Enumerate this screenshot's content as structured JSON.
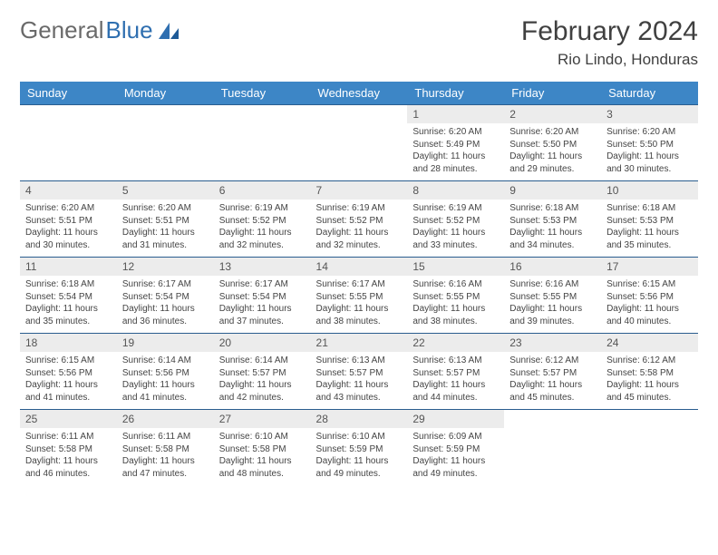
{
  "brand": {
    "part1": "General",
    "part2": "Blue"
  },
  "title": "February 2024",
  "location": "Rio Lindo, Honduras",
  "colors": {
    "header_bg": "#3d86c6",
    "header_text": "#ffffff",
    "row_border": "#2a5d8f",
    "daynum_bg": "#ececec",
    "logo_gray": "#6a6a6a",
    "logo_blue": "#2f6fb0"
  },
  "weekdays": [
    "Sunday",
    "Monday",
    "Tuesday",
    "Wednesday",
    "Thursday",
    "Friday",
    "Saturday"
  ],
  "weeks": [
    [
      {
        "empty": true
      },
      {
        "empty": true
      },
      {
        "empty": true
      },
      {
        "empty": true
      },
      {
        "n": "1",
        "sr": "Sunrise: 6:20 AM",
        "ss": "Sunset: 5:49 PM",
        "dl": "Daylight: 11 hours and 28 minutes."
      },
      {
        "n": "2",
        "sr": "Sunrise: 6:20 AM",
        "ss": "Sunset: 5:50 PM",
        "dl": "Daylight: 11 hours and 29 minutes."
      },
      {
        "n": "3",
        "sr": "Sunrise: 6:20 AM",
        "ss": "Sunset: 5:50 PM",
        "dl": "Daylight: 11 hours and 30 minutes."
      }
    ],
    [
      {
        "n": "4",
        "sr": "Sunrise: 6:20 AM",
        "ss": "Sunset: 5:51 PM",
        "dl": "Daylight: 11 hours and 30 minutes."
      },
      {
        "n": "5",
        "sr": "Sunrise: 6:20 AM",
        "ss": "Sunset: 5:51 PM",
        "dl": "Daylight: 11 hours and 31 minutes."
      },
      {
        "n": "6",
        "sr": "Sunrise: 6:19 AM",
        "ss": "Sunset: 5:52 PM",
        "dl": "Daylight: 11 hours and 32 minutes."
      },
      {
        "n": "7",
        "sr": "Sunrise: 6:19 AM",
        "ss": "Sunset: 5:52 PM",
        "dl": "Daylight: 11 hours and 32 minutes."
      },
      {
        "n": "8",
        "sr": "Sunrise: 6:19 AM",
        "ss": "Sunset: 5:52 PM",
        "dl": "Daylight: 11 hours and 33 minutes."
      },
      {
        "n": "9",
        "sr": "Sunrise: 6:18 AM",
        "ss": "Sunset: 5:53 PM",
        "dl": "Daylight: 11 hours and 34 minutes."
      },
      {
        "n": "10",
        "sr": "Sunrise: 6:18 AM",
        "ss": "Sunset: 5:53 PM",
        "dl": "Daylight: 11 hours and 35 minutes."
      }
    ],
    [
      {
        "n": "11",
        "sr": "Sunrise: 6:18 AM",
        "ss": "Sunset: 5:54 PM",
        "dl": "Daylight: 11 hours and 35 minutes."
      },
      {
        "n": "12",
        "sr": "Sunrise: 6:17 AM",
        "ss": "Sunset: 5:54 PM",
        "dl": "Daylight: 11 hours and 36 minutes."
      },
      {
        "n": "13",
        "sr": "Sunrise: 6:17 AM",
        "ss": "Sunset: 5:54 PM",
        "dl": "Daylight: 11 hours and 37 minutes."
      },
      {
        "n": "14",
        "sr": "Sunrise: 6:17 AM",
        "ss": "Sunset: 5:55 PM",
        "dl": "Daylight: 11 hours and 38 minutes."
      },
      {
        "n": "15",
        "sr": "Sunrise: 6:16 AM",
        "ss": "Sunset: 5:55 PM",
        "dl": "Daylight: 11 hours and 38 minutes."
      },
      {
        "n": "16",
        "sr": "Sunrise: 6:16 AM",
        "ss": "Sunset: 5:55 PM",
        "dl": "Daylight: 11 hours and 39 minutes."
      },
      {
        "n": "17",
        "sr": "Sunrise: 6:15 AM",
        "ss": "Sunset: 5:56 PM",
        "dl": "Daylight: 11 hours and 40 minutes."
      }
    ],
    [
      {
        "n": "18",
        "sr": "Sunrise: 6:15 AM",
        "ss": "Sunset: 5:56 PM",
        "dl": "Daylight: 11 hours and 41 minutes."
      },
      {
        "n": "19",
        "sr": "Sunrise: 6:14 AM",
        "ss": "Sunset: 5:56 PM",
        "dl": "Daylight: 11 hours and 41 minutes."
      },
      {
        "n": "20",
        "sr": "Sunrise: 6:14 AM",
        "ss": "Sunset: 5:57 PM",
        "dl": "Daylight: 11 hours and 42 minutes."
      },
      {
        "n": "21",
        "sr": "Sunrise: 6:13 AM",
        "ss": "Sunset: 5:57 PM",
        "dl": "Daylight: 11 hours and 43 minutes."
      },
      {
        "n": "22",
        "sr": "Sunrise: 6:13 AM",
        "ss": "Sunset: 5:57 PM",
        "dl": "Daylight: 11 hours and 44 minutes."
      },
      {
        "n": "23",
        "sr": "Sunrise: 6:12 AM",
        "ss": "Sunset: 5:57 PM",
        "dl": "Daylight: 11 hours and 45 minutes."
      },
      {
        "n": "24",
        "sr": "Sunrise: 6:12 AM",
        "ss": "Sunset: 5:58 PM",
        "dl": "Daylight: 11 hours and 45 minutes."
      }
    ],
    [
      {
        "n": "25",
        "sr": "Sunrise: 6:11 AM",
        "ss": "Sunset: 5:58 PM",
        "dl": "Daylight: 11 hours and 46 minutes."
      },
      {
        "n": "26",
        "sr": "Sunrise: 6:11 AM",
        "ss": "Sunset: 5:58 PM",
        "dl": "Daylight: 11 hours and 47 minutes."
      },
      {
        "n": "27",
        "sr": "Sunrise: 6:10 AM",
        "ss": "Sunset: 5:58 PM",
        "dl": "Daylight: 11 hours and 48 minutes."
      },
      {
        "n": "28",
        "sr": "Sunrise: 6:10 AM",
        "ss": "Sunset: 5:59 PM",
        "dl": "Daylight: 11 hours and 49 minutes."
      },
      {
        "n": "29",
        "sr": "Sunrise: 6:09 AM",
        "ss": "Sunset: 5:59 PM",
        "dl": "Daylight: 11 hours and 49 minutes."
      },
      {
        "empty": true
      },
      {
        "empty": true
      }
    ]
  ]
}
